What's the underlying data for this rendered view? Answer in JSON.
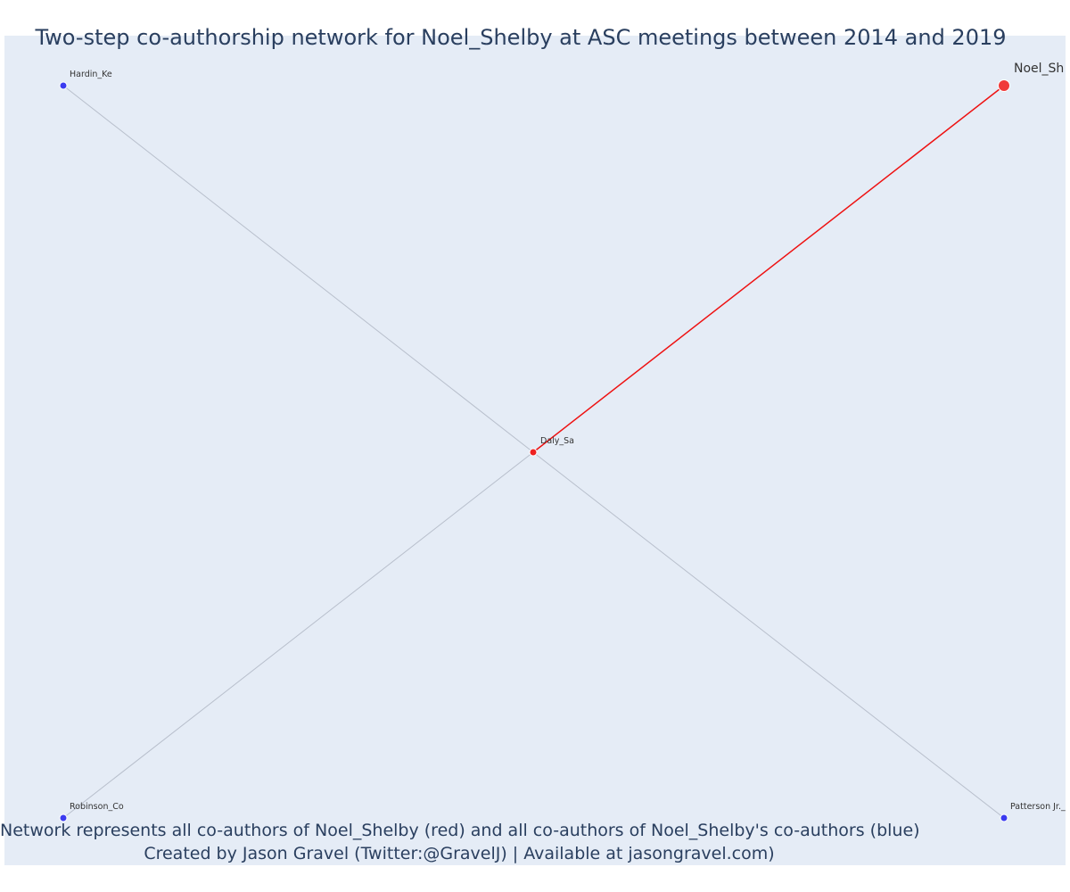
{
  "title": "Two-step co-authorship network for Noel_Shelby at ASC meetings between 2014 and 2019",
  "caption": {
    "line1": "Network represents all co-authors of Noel_Shelby (red) and all co-authors of Noel_Shelby's co-authors (blue)",
    "line2": "Created by Jason Gravel (Twitter:@GravelJ) | Available at jasongravel.com)"
  },
  "colors": {
    "plot_bg": "#e5ecf6",
    "edge_default": "#b8bfcc",
    "edge_ego": "#ee1111",
    "node_ego": "#f03a3a",
    "node_coauthor": "#ee2222",
    "node_second": "#3b3bf0",
    "text": "#2a3f5f"
  },
  "chart_data": {
    "type": "network",
    "nodes": [
      {
        "id": "noel",
        "label": "Noel_Sh",
        "group": "ego"
      },
      {
        "id": "daly",
        "label": "Daly_Sa",
        "group": "coauthor"
      },
      {
        "id": "hardin",
        "label": "Hardin_Ke",
        "group": "second"
      },
      {
        "id": "robinson",
        "label": "Robinson_Co",
        "group": "second"
      },
      {
        "id": "patterson",
        "label": "Patterson Jr._",
        "group": "second"
      }
    ],
    "edges": [
      {
        "source": "noel",
        "target": "daly",
        "type": "ego"
      },
      {
        "source": "hardin",
        "target": "daly",
        "type": "default"
      },
      {
        "source": "robinson",
        "target": "daly",
        "type": "default"
      },
      {
        "source": "patterson",
        "target": "daly",
        "type": "default"
      }
    ]
  }
}
